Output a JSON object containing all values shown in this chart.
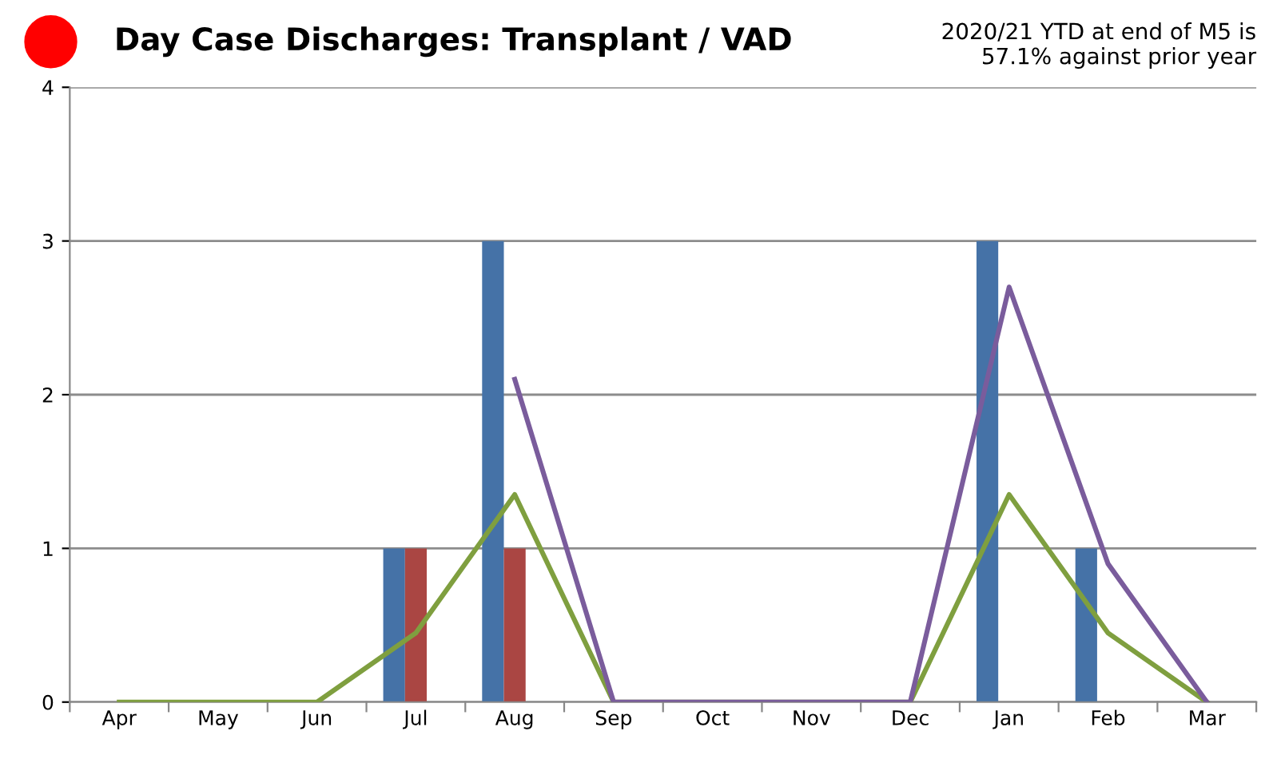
{
  "chart_data": {
    "type": "bar",
    "title": "Day Case Discharges: Transplant / VAD",
    "annotations": [
      "2020/21 YTD at end of M5 is\n57.1% against prior year"
    ],
    "categories": [
      "Apr",
      "May",
      "Jun",
      "Jul",
      "Aug",
      "Sep",
      "Oct",
      "Nov",
      "Dec",
      "Jan",
      "Feb",
      "Mar"
    ],
    "series": [
      {
        "color": "#4572a7",
        "values": [
          0,
          0,
          0,
          1,
          3,
          0,
          0,
          0,
          0,
          3,
          1,
          0
        ]
      },
      {
        "color": "#aa4643",
        "values": [
          0,
          0,
          0,
          1,
          1,
          0,
          0,
          0,
          0,
          0,
          0,
          0
        ]
      },
      {
        "type": "line",
        "color": "#7f9f3f",
        "values": [
          0,
          0,
          0,
          0.45,
          1.35,
          0,
          0,
          0,
          0,
          1.35,
          0.45,
          0
        ]
      },
      {
        "type": "line",
        "color": "#7a5c9c",
        "values": [
          null,
          null,
          null,
          null,
          2.1,
          0,
          0,
          0,
          0,
          2.7,
          0.9,
          0
        ]
      }
    ],
    "ylim": [
      0,
      4
    ],
    "yticks": [
      0,
      1,
      2,
      3,
      4
    ],
    "grid": "y",
    "legend": false,
    "marker": "none",
    "line_style": "solid"
  }
}
